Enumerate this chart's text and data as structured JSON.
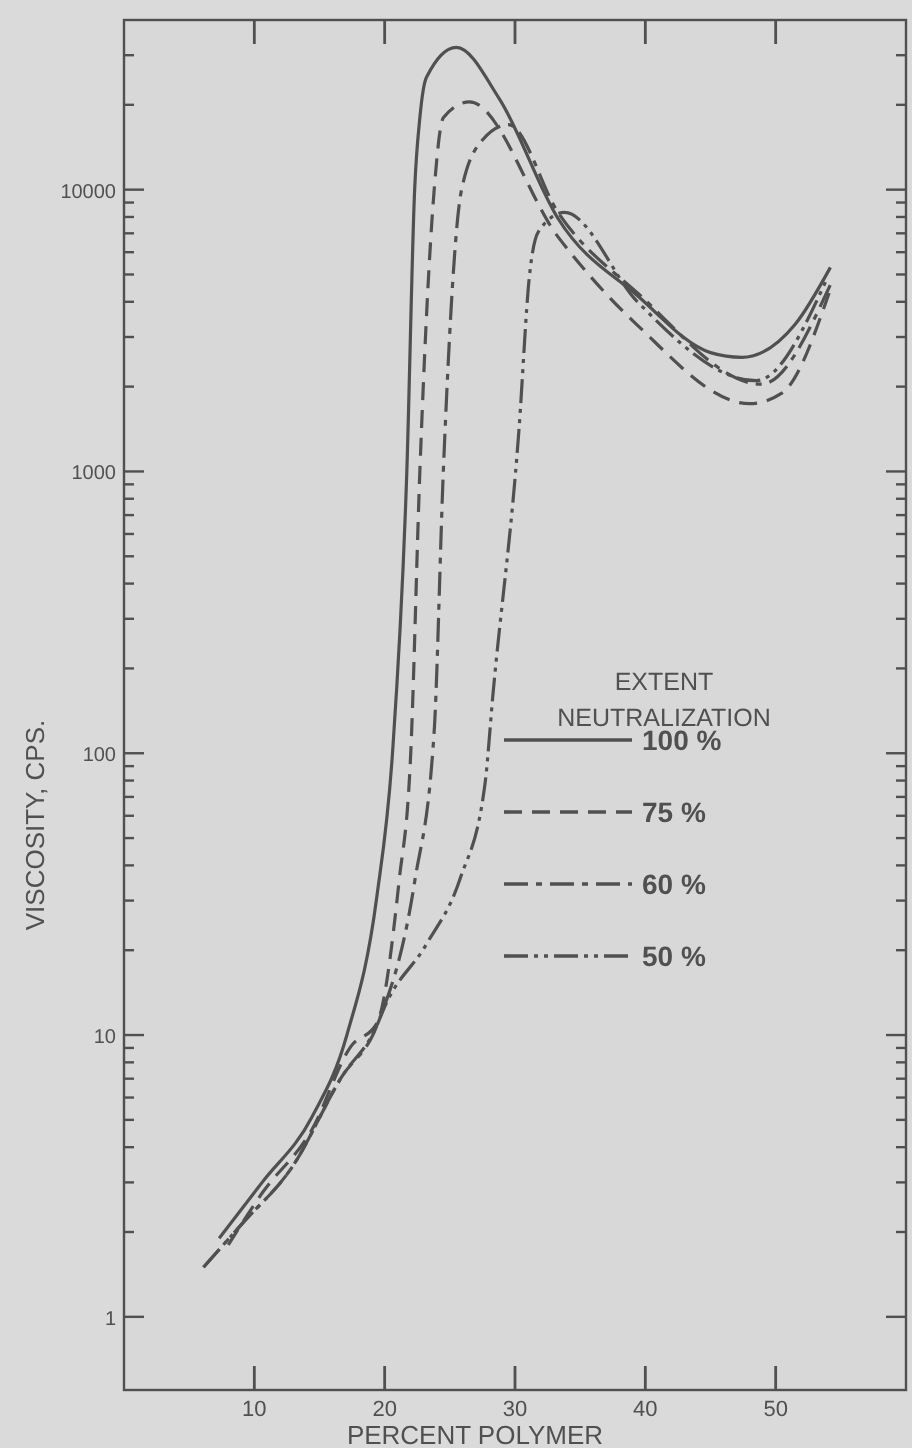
{
  "chart_data": {
    "type": "line",
    "xlabel": "PERCENT POLYMER",
    "ylabel": "VISCOSITY, CPS.",
    "legend_title": "EXTENT NEUTRALIZATION",
    "legend": "right",
    "log": "y",
    "grid": false,
    "xlim": [
      0,
      60
    ],
    "xticks": [
      10,
      20,
      30,
      40,
      50
    ],
    "ylim": [
      0.55,
      40000
    ],
    "yticks": [
      1,
      {
        "value": 2,
        "label": null
      },
      {
        "value": 3,
        "label": null
      },
      {
        "value": 4,
        "label": null
      },
      {
        "value": 5,
        "label": null
      },
      {
        "value": 6,
        "label": null
      },
      {
        "value": 7,
        "label": null
      },
      {
        "value": 8,
        "label": null
      },
      {
        "value": 9,
        "label": null
      },
      10,
      {
        "value": 20,
        "label": null
      },
      {
        "value": 30,
        "label": null
      },
      {
        "value": 40,
        "label": null
      },
      {
        "value": 50,
        "label": null
      },
      {
        "value": 60,
        "label": null
      },
      {
        "value": 70,
        "label": null
      },
      {
        "value": 80,
        "label": null
      },
      {
        "value": 90,
        "label": null
      },
      100,
      {
        "value": 200,
        "label": null
      },
      {
        "value": 300,
        "label": null
      },
      {
        "value": 400,
        "label": null
      },
      {
        "value": 500,
        "label": null
      },
      {
        "value": 600,
        "label": null
      },
      {
        "value": 700,
        "label": null
      },
      {
        "value": 800,
        "label": null
      },
      {
        "value": 900,
        "label": null
      },
      1000,
      {
        "value": 2000,
        "label": null
      },
      {
        "value": 3000,
        "label": null
      },
      {
        "value": 4000,
        "label": null
      },
      {
        "value": 5000,
        "label": null
      },
      {
        "value": 6000,
        "label": null
      },
      {
        "value": 7000,
        "label": null
      },
      {
        "value": 8000,
        "label": null
      },
      {
        "value": 9000,
        "label": null
      },
      10000,
      {
        "value": 20000,
        "label": null
      },
      {
        "value": 30000,
        "label": null
      }
    ],
    "series": [
      {
        "name": "100 %",
        "color": "#505050",
        "line_style": "solid",
        "x": [
          7.3,
          10.6,
          14.4,
          17.1,
          19.4,
          20.6,
          21.7,
          22.3,
          22.7,
          23.2,
          25.5,
          28.8,
          33.3,
          39.4,
          45,
          47.4,
          51.5,
          54.2
        ],
        "values": [
          1.9,
          3,
          5.1,
          10,
          31,
          100,
          1000,
          10000,
          18000,
          25000,
          32000,
          21000,
          7900,
          4200,
          2640,
          2540,
          3330,
          5300
        ]
      },
      {
        "name": "75 %",
        "color": "#505050",
        "line_style": "dashed",
        "x": [
          8,
          10.6,
          14.4,
          17.4,
          19.4,
          21.1,
          22,
          22.7,
          23.8,
          24.5,
          26.5,
          33.3,
          39.4,
          48,
          50.5,
          54.1
        ],
        "values": [
          1.8,
          2.75,
          4.6,
          9.1,
          11,
          35,
          100,
          1000,
          10000,
          18000,
          20500,
          6800,
          3300,
          1740,
          1900,
          4300
        ]
      },
      {
        "name": "60 %",
        "color": "#505050",
        "line_style": "dashdot",
        "x": [
          6.1,
          9.1,
          12.9,
          16.7,
          19.4,
          22.3,
          23.8,
          24.5,
          25.9,
          27.5,
          29.5,
          33.3,
          39.4,
          48.9,
          54.2
        ],
        "values": [
          1.5,
          2.15,
          3.4,
          7.1,
          10.8,
          35,
          120,
          1000,
          10000,
          15000,
          17000,
          8300,
          4300,
          2040,
          4600
        ]
      },
      {
        "name": "50 %",
        "color": "#505050",
        "line_style": "dashdotdot",
        "x": [
          6.1,
          9.1,
          12.9,
          16.7,
          19.4,
          20,
          23.2,
          25.8,
          27.7,
          28.3,
          30.3,
          31.1,
          31.8,
          33.8,
          39.4,
          48.5,
          54
        ],
        "values": [
          1.5,
          2.15,
          3.4,
          7.1,
          10.8,
          12.6,
          21,
          36,
          78,
          160,
          1400,
          4900,
          7100,
          8300,
          4000,
          2100,
          4900
        ]
      }
    ]
  }
}
